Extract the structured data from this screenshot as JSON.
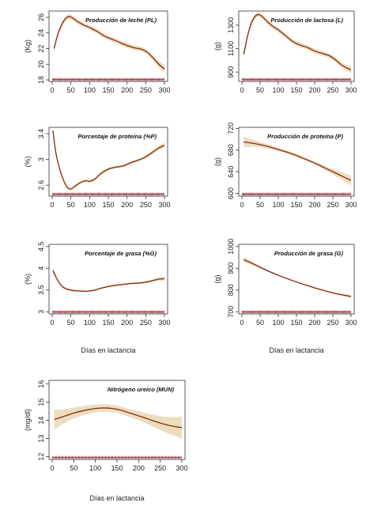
{
  "chart_data": [
    {
      "type": "line",
      "title": "Producción de leche (PL)",
      "ylabel": "(Kg)",
      "xlabel": "",
      "xlim": [
        0,
        300
      ],
      "xticks": [
        0,
        50,
        100,
        150,
        200,
        250,
        300
      ],
      "ylim": [
        17.8,
        26.8
      ],
      "yticks": [
        18,
        20,
        22,
        24,
        26
      ],
      "series": [
        {
          "x": [
            5,
            15,
            25,
            35,
            45,
            55,
            70,
            85,
            100,
            120,
            140,
            160,
            180,
            200,
            220,
            240,
            255,
            270,
            285,
            300
          ],
          "y": [
            22.0,
            23.8,
            25.0,
            25.8,
            26.1,
            25.9,
            25.4,
            25.0,
            24.7,
            24.2,
            23.6,
            23.2,
            22.8,
            22.4,
            22.1,
            21.9,
            21.5,
            20.8,
            20.0,
            19.4
          ],
          "ci": [
            0.4,
            0.35,
            0.3,
            0.3,
            0.3,
            0.3,
            0.3,
            0.3,
            0.3,
            0.3,
            0.3,
            0.3,
            0.3,
            0.3,
            0.3,
            0.3,
            0.3,
            0.35,
            0.4,
            0.5
          ]
        }
      ]
    },
    {
      "type": "line",
      "title": "Producción de lactosa (L)",
      "ylabel": "(g)",
      "xlabel": "",
      "xlim": [
        0,
        300
      ],
      "xticks": [
        0,
        50,
        100,
        150,
        200,
        250,
        300
      ],
      "ylim": [
        820,
        1420
      ],
      "yticks": [
        900,
        1100,
        1300
      ],
      "series": [
        {
          "x": [
            5,
            15,
            25,
            35,
            45,
            55,
            70,
            85,
            100,
            120,
            140,
            160,
            180,
            200,
            220,
            240,
            255,
            270,
            285,
            300
          ],
          "y": [
            1050,
            1200,
            1310,
            1370,
            1390,
            1375,
            1330,
            1290,
            1260,
            1210,
            1160,
            1130,
            1110,
            1080,
            1060,
            1040,
            1010,
            970,
            940,
            920
          ],
          "ci": [
            30,
            25,
            20,
            20,
            20,
            20,
            20,
            20,
            20,
            20,
            20,
            20,
            20,
            20,
            20,
            20,
            20,
            22,
            25,
            30
          ]
        }
      ]
    },
    {
      "type": "line",
      "title": "Porcentaje de proteína (%P)",
      "ylabel": "(%)",
      "xlabel": "",
      "xlim": [
        0,
        300
      ],
      "xticks": [
        0,
        50,
        100,
        150,
        200,
        250,
        300
      ],
      "ylim": [
        2.43,
        3.5
      ],
      "yticks": [
        2.6,
        3.0,
        3.4
      ],
      "series": [
        {
          "x": [
            2,
            10,
            20,
            30,
            40,
            50,
            60,
            75,
            90,
            100,
            115,
            130,
            150,
            170,
            190,
            210,
            230,
            250,
            270,
            285,
            300
          ],
          "y": [
            3.45,
            3.1,
            2.85,
            2.68,
            2.57,
            2.54,
            2.58,
            2.64,
            2.67,
            2.66,
            2.7,
            2.78,
            2.85,
            2.88,
            2.9,
            2.95,
            2.99,
            3.04,
            3.12,
            3.18,
            3.22
          ],
          "ci": [
            0.06,
            0.04,
            0.03,
            0.025,
            0.02,
            0.02,
            0.02,
            0.02,
            0.02,
            0.02,
            0.02,
            0.02,
            0.02,
            0.02,
            0.02,
            0.02,
            0.02,
            0.025,
            0.03,
            0.035,
            0.04
          ]
        }
      ]
    },
    {
      "type": "line",
      "title": "Producción de proteína (P)",
      "ylabel": "(g)",
      "xlabel": "",
      "xlim": [
        0,
        300
      ],
      "xticks": [
        0,
        50,
        100,
        150,
        200,
        250,
        300
      ],
      "ylim": [
        595,
        722
      ],
      "yticks": [
        600,
        640,
        680,
        720
      ],
      "series": [
        {
          "x": [
            5,
            25,
            50,
            75,
            100,
            125,
            150,
            175,
            200,
            225,
            250,
            275,
            300
          ],
          "y": [
            695,
            693,
            690,
            686,
            681,
            676,
            670,
            663,
            656,
            648,
            640,
            632,
            624
          ],
          "ci": [
            10,
            7,
            5,
            4,
            3,
            3,
            3,
            3,
            3,
            4,
            5,
            7,
            9
          ]
        }
      ]
    },
    {
      "type": "line",
      "title": "Porcentaje de grasa (%G)",
      "ylabel": "(%)",
      "xlabel": "Días en lactancia",
      "xlim": [
        0,
        300
      ],
      "xticks": [
        0,
        50,
        100,
        150,
        200,
        250,
        300
      ],
      "ylim": [
        2.95,
        4.55
      ],
      "yticks": [
        3.0,
        3.5,
        4.0,
        4.5
      ],
      "series": [
        {
          "x": [
            2,
            10,
            20,
            30,
            40,
            55,
            70,
            90,
            100,
            115,
            130,
            150,
            170,
            190,
            210,
            230,
            250,
            270,
            285,
            300
          ],
          "y": [
            3.95,
            3.8,
            3.65,
            3.56,
            3.52,
            3.49,
            3.48,
            3.47,
            3.48,
            3.5,
            3.54,
            3.58,
            3.61,
            3.63,
            3.65,
            3.66,
            3.68,
            3.72,
            3.75,
            3.76
          ],
          "ci": [
            0.06,
            0.04,
            0.03,
            0.025,
            0.02,
            0.02,
            0.02,
            0.02,
            0.02,
            0.02,
            0.02,
            0.02,
            0.02,
            0.02,
            0.02,
            0.02,
            0.025,
            0.03,
            0.04,
            0.05
          ]
        }
      ]
    },
    {
      "type": "line",
      "title": "Producción de grasa (G)",
      "ylabel": "(g)",
      "xlabel": "Días en lactancia",
      "xlim": [
        0,
        300
      ],
      "xticks": [
        0,
        50,
        100,
        150,
        200,
        250,
        300
      ],
      "ylim": [
        690,
        1010
      ],
      "yticks": [
        700,
        800,
        900,
        1000
      ],
      "series": [
        {
          "x": [
            5,
            25,
            50,
            75,
            100,
            125,
            150,
            175,
            200,
            225,
            250,
            275,
            300
          ],
          "y": [
            940,
            925,
            905,
            885,
            868,
            852,
            837,
            823,
            810,
            798,
            787,
            778,
            770
          ],
          "ci": [
            12,
            8,
            5,
            4,
            3,
            3,
            3,
            3,
            3,
            3,
            4,
            5,
            7
          ]
        }
      ]
    },
    {
      "type": "line",
      "title": "Nitrógeno ureico (MUN)",
      "ylabel": "(mg/dl)",
      "xlabel": "Días en lactancia",
      "xlim": [
        0,
        300
      ],
      "xticks": [
        0,
        50,
        100,
        150,
        200,
        250,
        300
      ],
      "ylim": [
        11.85,
        16.2
      ],
      "yticks": [
        12,
        13,
        14,
        15,
        16
      ],
      "series": [
        {
          "x": [
            5,
            25,
            50,
            75,
            100,
            120,
            140,
            160,
            180,
            200,
            225,
            250,
            275,
            300
          ],
          "y": [
            14.05,
            14.2,
            14.4,
            14.55,
            14.65,
            14.68,
            14.65,
            14.55,
            14.4,
            14.25,
            14.05,
            13.85,
            13.7,
            13.6
          ],
          "ci": [
            0.55,
            0.4,
            0.3,
            0.25,
            0.22,
            0.2,
            0.2,
            0.2,
            0.22,
            0.25,
            0.3,
            0.38,
            0.48,
            0.6
          ]
        }
      ]
    }
  ]
}
